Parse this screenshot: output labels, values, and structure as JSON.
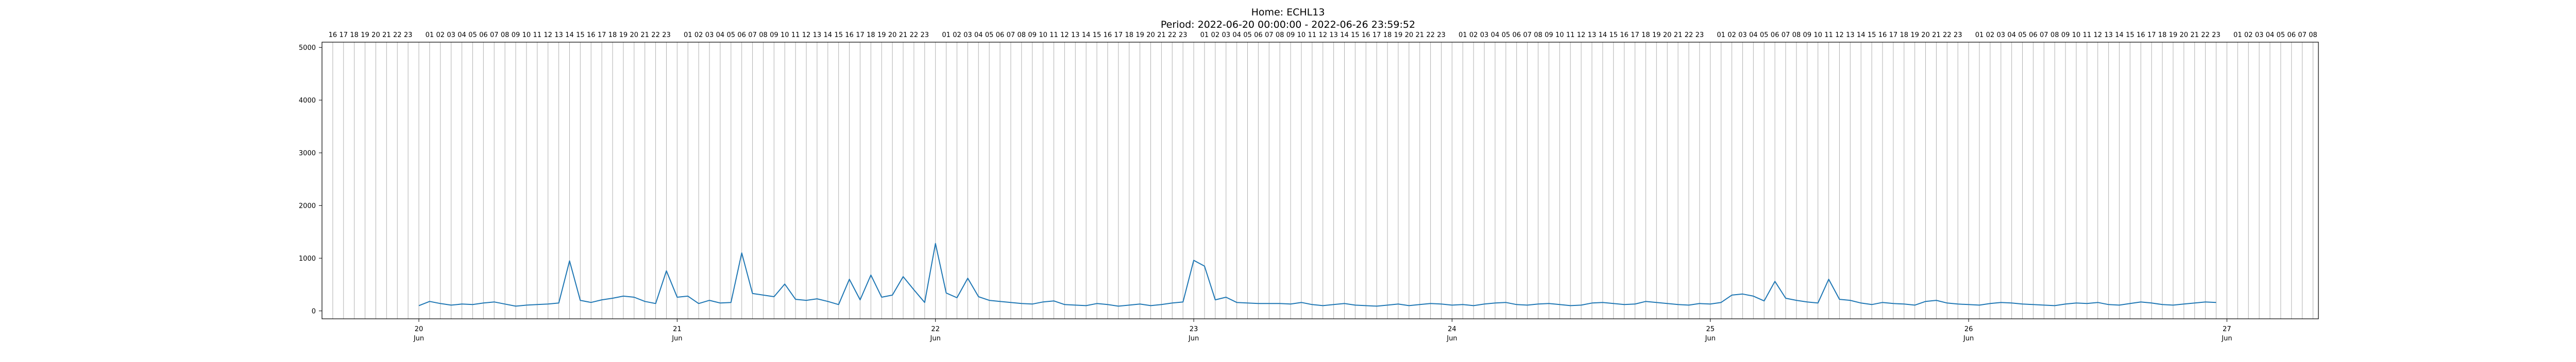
{
  "chart_data": {
    "type": "line",
    "title": "Home: ECHL13",
    "subtitle": "Period: 2022-06-20 00:00:00 - 2022-06-26 23:59:52",
    "xlabel": "",
    "ylabel": "",
    "xlim": [
      "2022-06-19 15:00",
      "2022-06-27 08:30"
    ],
    "ylim": [
      -150,
      5100
    ],
    "grid": "vertical hourly lines",
    "legend": "none",
    "line_color": "#1f77b4",
    "y_ticks": [
      "0",
      "1000",
      "2000",
      "3000",
      "4000",
      "5000"
    ],
    "x_ticks": [
      {
        "day": "20",
        "month": "Jun",
        "date": "2022-06-20"
      },
      {
        "day": "21",
        "month": "Jun",
        "date": "2022-06-21"
      },
      {
        "day": "22",
        "month": "Jun",
        "date": "2022-06-22"
      },
      {
        "day": "23",
        "month": "Jun",
        "date": "2022-06-23"
      },
      {
        "day": "24",
        "month": "Jun",
        "date": "2022-06-24"
      },
      {
        "day": "25",
        "month": "Jun",
        "date": "2022-06-25"
      },
      {
        "day": "26",
        "month": "Jun",
        "date": "2022-06-26"
      },
      {
        "day": "27",
        "month": "Jun",
        "date": "2022-06-27"
      }
    ],
    "hour_axis": {
      "start": "2022-06-19 16:00",
      "end": "2022-06-27 08:00"
    },
    "series": [
      {
        "x": [
          "2022-06-20 00:00",
          "2022-06-20 01:00",
          "2022-06-20 02:00",
          "2022-06-20 03:00",
          "2022-06-20 04:00",
          "2022-06-20 05:00",
          "2022-06-20 06:00",
          "2022-06-20 07:00",
          "2022-06-20 08:00",
          "2022-06-20 09:00",
          "2022-06-20 10:00",
          "2022-06-20 11:00",
          "2022-06-20 12:00",
          "2022-06-20 13:00",
          "2022-06-20 14:00",
          "2022-06-20 15:00",
          "2022-06-20 16:00",
          "2022-06-20 17:00",
          "2022-06-20 18:00",
          "2022-06-20 19:00",
          "2022-06-20 20:00",
          "2022-06-20 21:00",
          "2022-06-20 22:00",
          "2022-06-20 23:00",
          "2022-06-21 00:00",
          "2022-06-21 01:00",
          "2022-06-21 02:00",
          "2022-06-21 03:00",
          "2022-06-21 04:00",
          "2022-06-21 05:00",
          "2022-06-21 06:00",
          "2022-06-21 07:00",
          "2022-06-21 08:00",
          "2022-06-21 09:00",
          "2022-06-21 10:00",
          "2022-06-21 11:00",
          "2022-06-21 12:00",
          "2022-06-21 13:00",
          "2022-06-21 14:00",
          "2022-06-21 15:00",
          "2022-06-21 16:00",
          "2022-06-21 17:00",
          "2022-06-21 18:00",
          "2022-06-21 19:00",
          "2022-06-21 20:00",
          "2022-06-21 21:00",
          "2022-06-21 22:00",
          "2022-06-21 23:00",
          "2022-06-22 00:00",
          "2022-06-22 01:00",
          "2022-06-22 02:00",
          "2022-06-22 03:00",
          "2022-06-22 04:00",
          "2022-06-22 05:00",
          "2022-06-22 06:00",
          "2022-06-22 07:00",
          "2022-06-22 08:00",
          "2022-06-22 09:00",
          "2022-06-22 10:00",
          "2022-06-22 11:00",
          "2022-06-22 12:00",
          "2022-06-22 13:00",
          "2022-06-22 14:00",
          "2022-06-22 15:00",
          "2022-06-22 16:00",
          "2022-06-22 17:00",
          "2022-06-22 18:00",
          "2022-06-22 19:00",
          "2022-06-22 20:00",
          "2022-06-22 21:00",
          "2022-06-22 22:00",
          "2022-06-22 23:00",
          "2022-06-23 00:00",
          "2022-06-23 01:00",
          "2022-06-23 02:00",
          "2022-06-23 03:00",
          "2022-06-23 04:00",
          "2022-06-23 05:00",
          "2022-06-23 06:00",
          "2022-06-23 07:00",
          "2022-06-23 08:00",
          "2022-06-23 09:00",
          "2022-06-23 10:00",
          "2022-06-23 11:00",
          "2022-06-23 12:00",
          "2022-06-23 13:00",
          "2022-06-23 14:00",
          "2022-06-23 15:00",
          "2022-06-23 16:00",
          "2022-06-23 17:00",
          "2022-06-23 18:00",
          "2022-06-23 19:00",
          "2022-06-23 20:00",
          "2022-06-23 21:00",
          "2022-06-23 22:00",
          "2022-06-23 23:00",
          "2022-06-24 00:00",
          "2022-06-24 01:00",
          "2022-06-24 02:00",
          "2022-06-24 03:00",
          "2022-06-24 04:00",
          "2022-06-24 05:00",
          "2022-06-24 06:00",
          "2022-06-24 07:00",
          "2022-06-24 08:00",
          "2022-06-24 09:00",
          "2022-06-24 10:00",
          "2022-06-24 11:00",
          "2022-06-24 12:00",
          "2022-06-24 13:00",
          "2022-06-24 14:00",
          "2022-06-24 15:00",
          "2022-06-24 16:00",
          "2022-06-24 17:00",
          "2022-06-24 18:00",
          "2022-06-24 19:00",
          "2022-06-24 20:00",
          "2022-06-24 21:00",
          "2022-06-24 22:00",
          "2022-06-24 23:00",
          "2022-06-25 00:00",
          "2022-06-25 01:00",
          "2022-06-25 02:00",
          "2022-06-25 03:00",
          "2022-06-25 04:00",
          "2022-06-25 05:00",
          "2022-06-25 06:00",
          "2022-06-25 07:00",
          "2022-06-25 08:00",
          "2022-06-25 09:00",
          "2022-06-25 10:00",
          "2022-06-25 11:00",
          "2022-06-25 12:00",
          "2022-06-25 13:00",
          "2022-06-25 14:00",
          "2022-06-25 15:00",
          "2022-06-25 16:00",
          "2022-06-25 17:00",
          "2022-06-25 18:00",
          "2022-06-25 19:00",
          "2022-06-25 20:00",
          "2022-06-25 21:00",
          "2022-06-25 22:00",
          "2022-06-25 23:00",
          "2022-06-26 00:00",
          "2022-06-26 01:00",
          "2022-06-26 02:00",
          "2022-06-26 03:00",
          "2022-06-26 04:00",
          "2022-06-26 05:00",
          "2022-06-26 06:00",
          "2022-06-26 07:00",
          "2022-06-26 08:00",
          "2022-06-26 09:00",
          "2022-06-26 10:00",
          "2022-06-26 11:00",
          "2022-06-26 12:00",
          "2022-06-26 13:00",
          "2022-06-26 14:00",
          "2022-06-26 15:00",
          "2022-06-26 16:00",
          "2022-06-26 17:00",
          "2022-06-26 18:00",
          "2022-06-26 19:00",
          "2022-06-26 20:00",
          "2022-06-26 21:00",
          "2022-06-26 22:00",
          "2022-06-26 23:00"
        ],
        "y": [
          100,
          180,
          140,
          110,
          130,
          120,
          150,
          170,
          130,
          90,
          110,
          120,
          130,
          150,
          950,
          200,
          160,
          210,
          240,
          280,
          260,
          180,
          140,
          760,
          260,
          280,
          140,
          200,
          150,
          160,
          1100,
          330,
          300,
          270,
          510,
          220,
          200,
          230,
          180,
          120,
          600,
          210,
          680,
          260,
          300,
          650,
          400,
          160,
          1280,
          340,
          250,
          620,
          270,
          200,
          180,
          160,
          140,
          130,
          170,
          190,
          120,
          110,
          100,
          140,
          120,
          90,
          110,
          130,
          100,
          120,
          150,
          170,
          960,
          850,
          210,
          260,
          160,
          150,
          140,
          140,
          140,
          130,
          160,
          120,
          100,
          120,
          140,
          110,
          100,
          90,
          110,
          130,
          100,
          120,
          140,
          130,
          110,
          120,
          100,
          130,
          150,
          160,
          120,
          110,
          130,
          140,
          120,
          100,
          110,
          150,
          160,
          140,
          120,
          130,
          180,
          160,
          140,
          120,
          110,
          140,
          130,
          160,
          300,
          320,
          280,
          190,
          560,
          240,
          200,
          170,
          150,
          600,
          220,
          200,
          150,
          120,
          160,
          140,
          130,
          110,
          180,
          200,
          150,
          130,
          120,
          110,
          140,
          160,
          150,
          130,
          120,
          110,
          100,
          130,
          150,
          140,
          160,
          120,
          110,
          140,
          170,
          150,
          120,
          110,
          130,
          150,
          170,
          160
        ]
      }
    ]
  }
}
